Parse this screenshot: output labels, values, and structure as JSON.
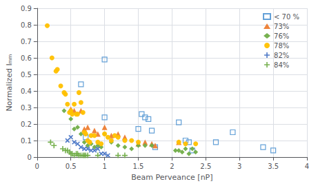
{
  "chart_data": {
    "type": "scatter",
    "title": "",
    "xlabel": "Beam Perveance [nP]",
    "ylabel": "Normalized Iₘₘ",
    "xlim": [
      0,
      4
    ],
    "ylim": [
      0,
      0.9
    ],
    "xticks": [
      0,
      0.5,
      1,
      1.5,
      2,
      2.5,
      3,
      3.5,
      4
    ],
    "yticks": [
      0,
      0.1,
      0.2,
      0.3,
      0.4,
      0.5,
      0.6,
      0.7,
      0.8,
      0.9
    ],
    "grid": true,
    "legend": "upper right",
    "series": [
      {
        "name": "< 70 %",
        "color": "#5B9BD5",
        "marker": "open_square",
        "x": [
          1.0,
          0.65,
          0.72,
          1.0,
          1.5,
          1.55,
          1.6,
          1.65,
          1.7,
          1.75,
          2.1,
          2.2,
          2.25,
          2.3,
          2.65,
          2.9,
          3.35,
          3.5
        ],
        "values": [
          0.59,
          0.44,
          0.12,
          0.24,
          0.17,
          0.26,
          0.24,
          0.23,
          0.16,
          0.06,
          0.21,
          0.1,
          0.09,
          0.04,
          0.09,
          0.15,
          0.06,
          0.04
        ]
      },
      {
        "name": "73%",
        "color": "#ED7D31",
        "marker": "triangle",
        "x": [
          0.5,
          0.55,
          0.65,
          0.7,
          0.75,
          0.85,
          0.9,
          1.0,
          1.1,
          1.2,
          1.3,
          1.5,
          1.6,
          1.7,
          1.75,
          2.1
        ],
        "values": [
          0.29,
          0.28,
          0.28,
          0.17,
          0.18,
          0.16,
          0.14,
          0.18,
          0.13,
          0.14,
          0.12,
          0.08,
          0.09,
          0.08,
          0.07,
          0.09
        ]
      },
      {
        "name": "76%",
        "color": "#70AD47",
        "marker": "diamond",
        "x": [
          0.4,
          0.5,
          0.55,
          0.6,
          0.65,
          0.7,
          0.75,
          0.8,
          0.85,
          0.9,
          0.95,
          1.0,
          1.1,
          1.2,
          1.3,
          1.4,
          1.5,
          1.6,
          1.7,
          2.05,
          2.1,
          2.15,
          2.2,
          2.25,
          2.3,
          2.35
        ],
        "values": [
          0.28,
          0.23,
          0.17,
          0.18,
          0.14,
          0.09,
          0.07,
          0.08,
          0.06,
          0.07,
          0.06,
          0.14,
          0.09,
          0.07,
          0.06,
          0.05,
          0.07,
          0.07,
          0.07,
          0.04,
          0.04,
          0.03,
          0.05,
          0.02,
          0.05,
          0.03
        ]
      },
      {
        "name": "78%",
        "color": "#FFC000",
        "marker": "circle",
        "x": [
          0.15,
          0.22,
          0.28,
          0.3,
          0.35,
          0.4,
          0.42,
          0.45,
          0.48,
          0.5,
          0.52,
          0.55,
          0.58,
          0.6,
          0.62,
          0.65,
          0.68,
          0.7,
          0.72,
          0.75,
          0.78,
          0.8,
          0.85,
          0.9,
          0.95,
          1.0,
          1.05,
          1.1,
          1.15,
          1.2,
          1.3,
          1.4,
          1.5,
          2.1,
          2.2,
          2.35
        ],
        "values": [
          0.795,
          0.6,
          0.52,
          0.53,
          0.43,
          0.39,
          0.38,
          0.32,
          0.27,
          0.28,
          0.26,
          0.32,
          0.26,
          0.26,
          0.39,
          0.33,
          0.27,
          0.15,
          0.14,
          0.1,
          0.09,
          0.13,
          0.13,
          0.09,
          0.08,
          0.14,
          0.12,
          0.1,
          0.13,
          0.12,
          0.1,
          0.1,
          0.09,
          0.09,
          0.08,
          0.08
        ]
      },
      {
        "name": "82%",
        "color": "#4472C4",
        "marker": "x",
        "x": [
          0.45,
          0.5,
          0.55,
          0.6,
          0.65,
          0.7,
          0.75,
          0.8,
          0.85,
          0.9,
          0.95,
          1.0,
          1.05
        ],
        "values": [
          0.1,
          0.12,
          0.09,
          0.08,
          0.06,
          0.05,
          0.05,
          0.04,
          0.04,
          0.05,
          0.02,
          0.02,
          0.01
        ]
      },
      {
        "name": "84%",
        "color": "#70AD47",
        "marker": "plus",
        "x": [
          0.2,
          0.25,
          0.38,
          0.42,
          0.45,
          0.48,
          0.5,
          0.52,
          0.55,
          0.58,
          0.6,
          0.62,
          0.65,
          0.68,
          0.7,
          0.72,
          0.75,
          0.9,
          1.2,
          1.3
        ],
        "values": [
          0.09,
          0.07,
          0.05,
          0.04,
          0.04,
          0.03,
          0.02,
          0.02,
          0.01,
          0.02,
          0.02,
          0.01,
          0.01,
          0.01,
          0.01,
          0.01,
          0.01,
          0.01,
          0.01,
          0.01
        ]
      }
    ]
  }
}
